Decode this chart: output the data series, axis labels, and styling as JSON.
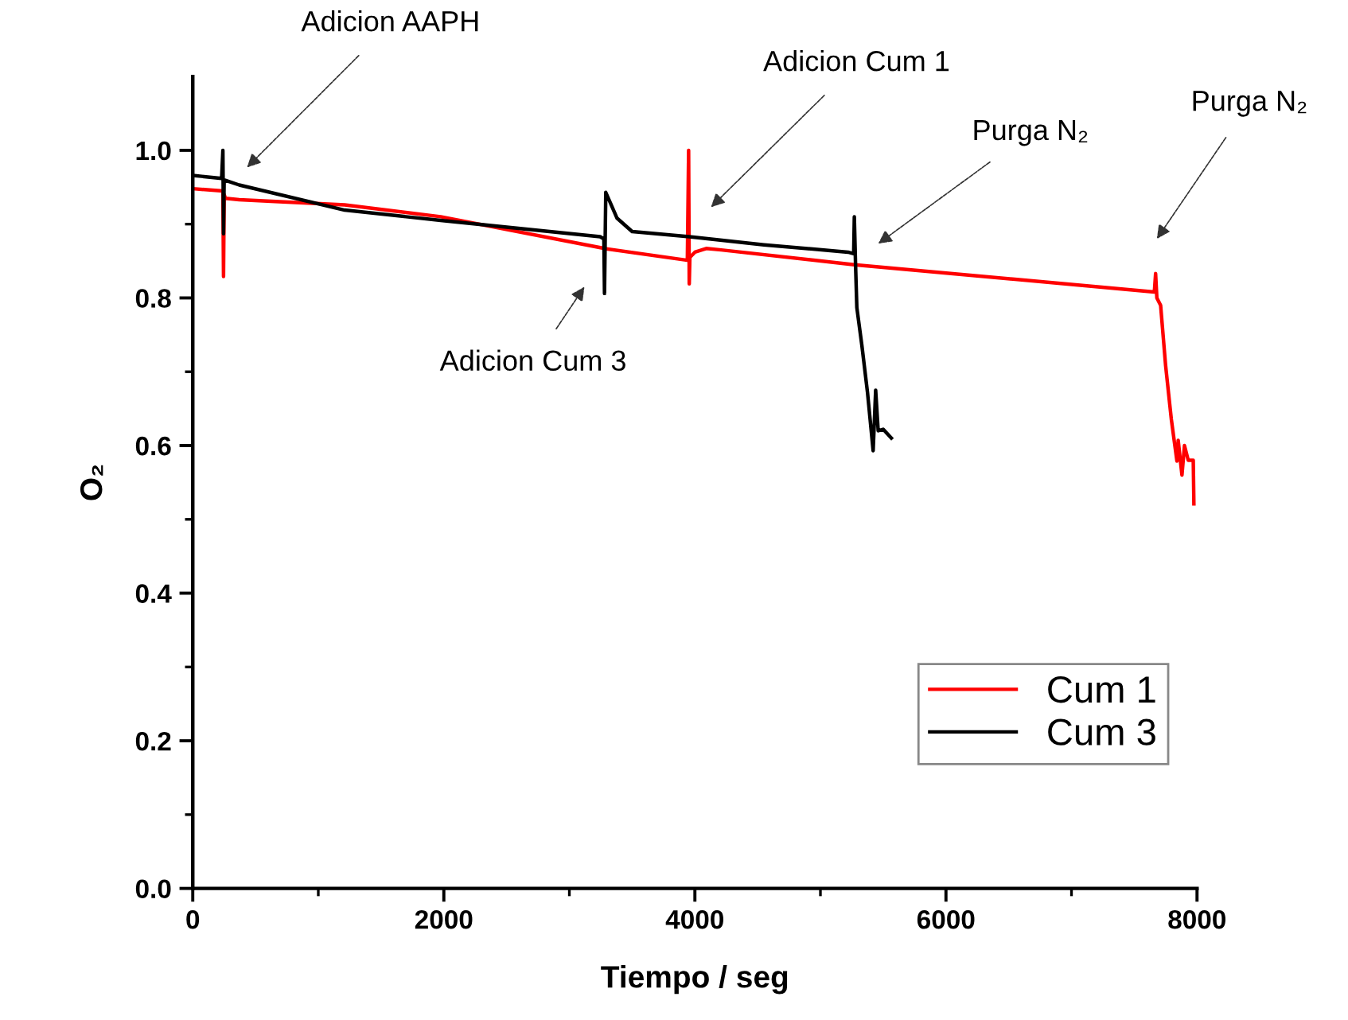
{
  "chart_data": {
    "type": "line",
    "xlabel": "Tiempo / seg",
    "ylabel": "O₂",
    "xlim": [
      0,
      8000
    ],
    "ylim": [
      0,
      1.1
    ],
    "xticks": [
      0,
      {
        "value": 1000,
        "label": null
      },
      2000,
      {
        "value": 3000,
        "label": null
      },
      4000,
      {
        "value": 5000,
        "label": null
      },
      6000,
      {
        "value": 7000,
        "label": null
      },
      8000
    ],
    "yticks": [
      "0.0",
      {
        "value": 0.1,
        "label": null
      },
      0.2,
      {
        "value": 0.3,
        "label": null
      },
      0.4,
      {
        "value": 0.5,
        "label": null
      },
      0.6,
      {
        "value": 0.7,
        "label": null
      },
      0.8,
      {
        "value": 0.9,
        "label": null
      },
      "1.0"
    ],
    "grid": false,
    "legend": "bottom right",
    "line_style": "solid",
    "marker": "none",
    "series": [
      {
        "name": "Cum 1",
        "color": "#ff0000",
        "x": [
          0,
          240,
          245,
          250,
          260,
          370,
          1210,
          1975,
          3280,
          3940,
          3950,
          3955,
          3960,
          4000,
          4090,
          4210,
          5270,
          7660,
          7670,
          7680,
          7710,
          7750,
          7795,
          7840,
          7850,
          7880,
          7900,
          7930,
          7950,
          7970,
          7975
        ],
        "values": [
          0.948,
          0.945,
          0.829,
          0.94,
          0.935,
          0.933,
          0.926,
          0.91,
          0.867,
          0.851,
          1.0,
          0.819,
          0.855,
          0.862,
          0.867,
          0.865,
          0.845,
          0.808,
          0.833,
          0.8,
          0.79,
          0.708,
          0.636,
          0.579,
          0.607,
          0.56,
          0.6,
          0.58,
          0.58,
          0.58,
          0.521
        ]
      },
      {
        "name": "Cum 3",
        "color": "#000000",
        "x": [
          0,
          230,
          240,
          245,
          250,
          370,
          1210,
          1975,
          3245,
          3275,
          3280,
          3290,
          3380,
          3500,
          3955,
          4550,
          5220,
          5265,
          5270,
          5280,
          5290,
          5330,
          5375,
          5420,
          5440,
          5460,
          5500,
          5565
        ],
        "values": [
          0.966,
          0.962,
          1.0,
          0.887,
          0.96,
          0.953,
          0.919,
          0.905,
          0.883,
          0.88,
          0.806,
          0.943,
          0.908,
          0.89,
          0.883,
          0.872,
          0.862,
          0.86,
          0.91,
          0.844,
          0.787,
          0.736,
          0.672,
          0.593,
          0.675,
          0.62,
          0.622,
          0.61
        ]
      }
    ],
    "annotations": [
      "Adicion AAPH",
      "Adicion Cum 3",
      "Adicion Cum 1",
      "Purga N₂",
      "Purga N₂"
    ]
  }
}
